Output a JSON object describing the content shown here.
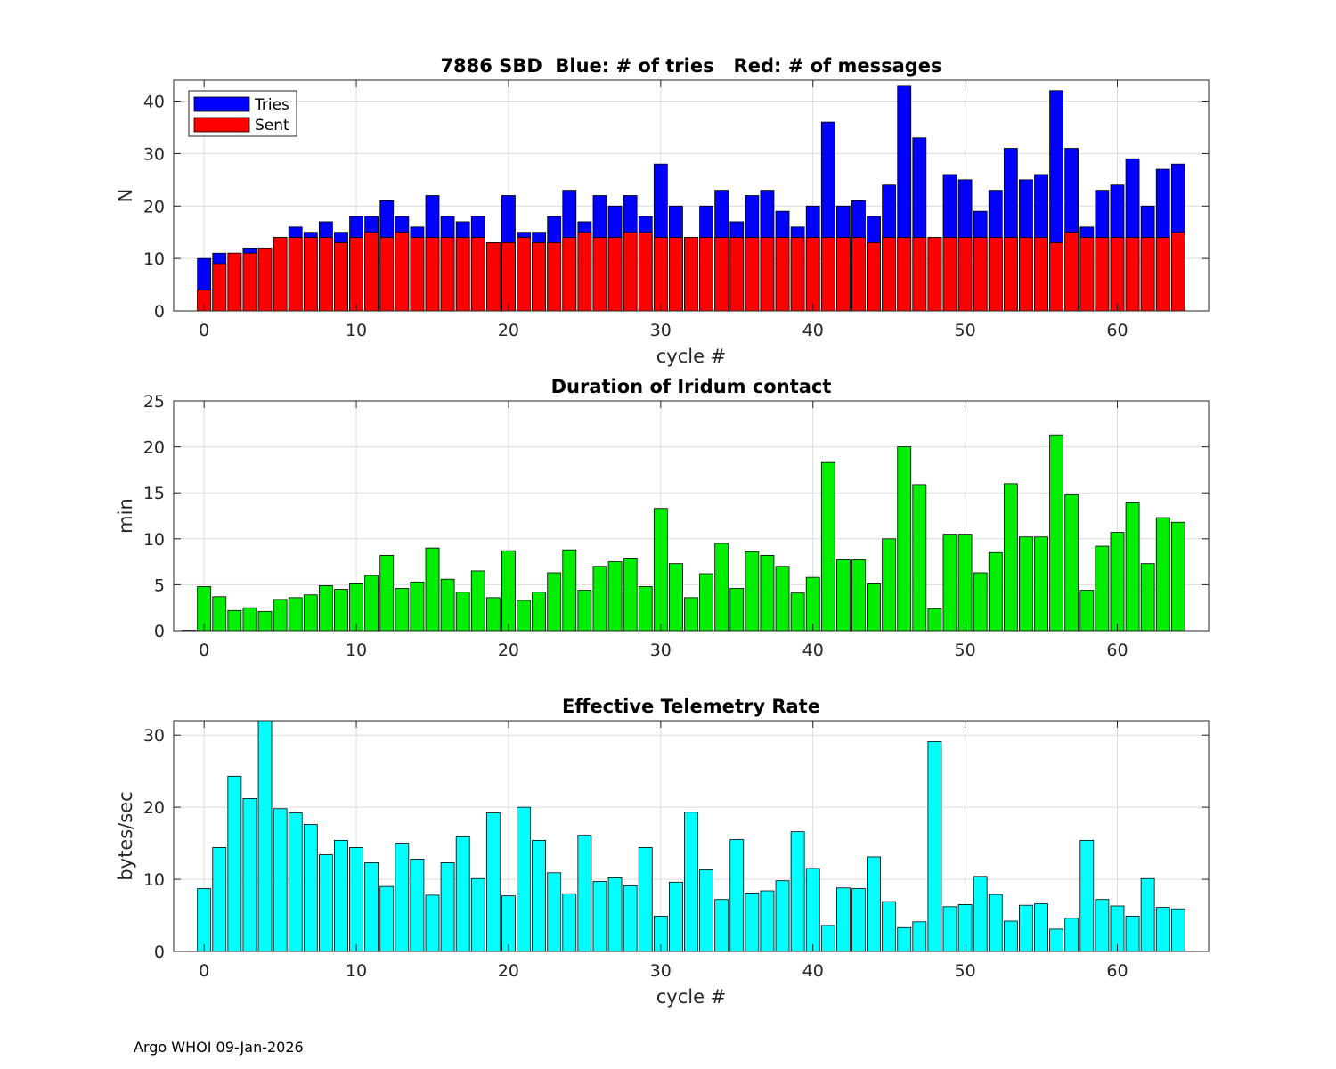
{
  "footer": "Argo WHOI 09-Jan-2026",
  "colors": {
    "tries": "#0000ff",
    "sent": "#ff0000",
    "duration": "#00ee00",
    "rate": "#00ffff",
    "grid": "#dcdcdc"
  },
  "chart_data": [
    {
      "type": "bar",
      "title": "7886 SBD  Blue: # of tries   Red: # of messages",
      "xlabel": "cycle #",
      "ylabel": "N",
      "xlim": [
        -2,
        66
      ],
      "ylim": [
        0,
        44
      ],
      "xticks": [
        0,
        10,
        20,
        30,
        40,
        50,
        60
      ],
      "yticks": [
        0,
        10,
        20,
        30,
        40
      ],
      "grid": true,
      "legend": {
        "position": "top-left",
        "entries": [
          "Tries",
          "Sent"
        ]
      },
      "x": [
        0,
        1,
        2,
        3,
        4,
        5,
        6,
        7,
        8,
        9,
        10,
        11,
        12,
        13,
        14,
        15,
        16,
        17,
        18,
        19,
        20,
        21,
        22,
        23,
        24,
        25,
        26,
        27,
        28,
        29,
        30,
        31,
        32,
        33,
        34,
        35,
        36,
        37,
        38,
        39,
        40,
        41,
        42,
        43,
        44,
        45,
        46,
        47,
        48,
        49,
        50,
        51,
        52,
        53,
        54,
        55,
        56,
        57,
        58,
        59,
        60,
        61,
        62,
        63,
        64
      ],
      "series": [
        {
          "name": "Tries",
          "overlay": true,
          "values": [
            10,
            11,
            11,
            12,
            12,
            14,
            16,
            15,
            17,
            15,
            18,
            18,
            21,
            18,
            16,
            22,
            18,
            17,
            18,
            13,
            22,
            15,
            15,
            18,
            23,
            17,
            22,
            20,
            22,
            18,
            28,
            20,
            14,
            20,
            23,
            17,
            22,
            23,
            19,
            16,
            20,
            36,
            20,
            21,
            18,
            24,
            43,
            33,
            14,
            26,
            25,
            19,
            23,
            31,
            25,
            26,
            42,
            31,
            16,
            23,
            24,
            29,
            20,
            27,
            28
          ]
        },
        {
          "name": "Sent",
          "overlay": true,
          "values": [
            4,
            9,
            11,
            11,
            12,
            14,
            14,
            14,
            14,
            13,
            14,
            15,
            14,
            15,
            14,
            14,
            14,
            14,
            14,
            13,
            13,
            14,
            13,
            13,
            14,
            15,
            14,
            14,
            15,
            15,
            14,
            14,
            14,
            14,
            14,
            14,
            14,
            14,
            14,
            14,
            14,
            14,
            14,
            14,
            13,
            14,
            14,
            14,
            14,
            14,
            14,
            14,
            14,
            14,
            14,
            14,
            13,
            15,
            14,
            14,
            14,
            14,
            14,
            14,
            15
          ]
        }
      ]
    },
    {
      "type": "bar",
      "title": "Duration of Iridum contact",
      "xlabel": "",
      "ylabel": "min",
      "xlim": [
        -2,
        66
      ],
      "ylim": [
        0,
        25
      ],
      "xticks": [
        0,
        10,
        20,
        30,
        40,
        50,
        60
      ],
      "yticks": [
        0,
        5,
        10,
        15,
        20,
        25
      ],
      "grid": true,
      "x": [
        -1,
        0,
        1,
        2,
        3,
        4,
        5,
        6,
        7,
        8,
        9,
        10,
        11,
        12,
        13,
        14,
        15,
        16,
        17,
        18,
        19,
        20,
        21,
        22,
        23,
        24,
        25,
        26,
        27,
        28,
        29,
        30,
        31,
        32,
        33,
        34,
        35,
        36,
        37,
        38,
        39,
        40,
        41,
        42,
        43,
        44,
        45,
        46,
        47,
        48,
        49,
        50,
        51,
        52,
        53,
        54,
        55,
        56,
        57,
        58,
        59,
        60,
        61,
        62,
        63,
        64
      ],
      "series": [
        {
          "name": "Duration",
          "values": [
            0.05,
            4.8,
            3.7,
            2.2,
            2.5,
            2.1,
            3.4,
            3.6,
            3.9,
            4.9,
            4.5,
            5.1,
            6.0,
            8.2,
            4.6,
            5.3,
            9.0,
            5.6,
            4.2,
            6.5,
            3.6,
            8.7,
            3.3,
            4.2,
            6.3,
            8.8,
            4.4,
            7.0,
            7.5,
            7.9,
            4.8,
            13.3,
            7.3,
            3.6,
            6.2,
            9.5,
            4.6,
            8.6,
            8.2,
            7.0,
            4.1,
            5.8,
            18.3,
            7.7,
            7.7,
            5.1,
            10.0,
            20.0,
            15.9,
            2.4,
            10.5,
            10.5,
            6.3,
            8.5,
            16.0,
            10.2,
            10.2,
            21.3,
            14.8,
            4.4,
            9.2,
            10.7,
            13.9,
            7.3,
            12.3,
            11.8
          ]
        }
      ]
    },
    {
      "type": "bar",
      "title": "Effective Telemetry Rate",
      "xlabel": "cycle #",
      "ylabel": "bytes/sec",
      "xlim": [
        -2,
        66
      ],
      "ylim": [
        0,
        32
      ],
      "xticks": [
        0,
        10,
        20,
        30,
        40,
        50,
        60
      ],
      "yticks": [
        0,
        10,
        20,
        30
      ],
      "grid": true,
      "x": [
        0,
        1,
        2,
        3,
        4,
        5,
        6,
        7,
        8,
        9,
        10,
        11,
        12,
        13,
        14,
        15,
        16,
        17,
        18,
        19,
        20,
        21,
        22,
        23,
        24,
        25,
        26,
        27,
        28,
        29,
        30,
        31,
        32,
        33,
        34,
        35,
        36,
        37,
        38,
        39,
        40,
        41,
        42,
        43,
        44,
        45,
        46,
        47,
        48,
        49,
        50,
        51,
        52,
        53,
        54,
        55,
        56,
        57,
        58,
        59,
        60,
        61,
        62,
        63,
        64
      ],
      "series": [
        {
          "name": "Rate",
          "values": [
            8.7,
            14.4,
            24.3,
            21.2,
            32,
            19.8,
            19.2,
            17.6,
            13.4,
            15.4,
            14.4,
            12.3,
            9.0,
            15.0,
            12.8,
            7.8,
            12.3,
            15.9,
            10.1,
            19.2,
            7.7,
            20.0,
            15.4,
            10.9,
            8.0,
            16.1,
            9.7,
            10.2,
            9.1,
            14.4,
            4.9,
            9.6,
            19.3,
            11.3,
            7.2,
            15.5,
            8.1,
            8.4,
            9.8,
            16.6,
            11.5,
            3.6,
            8.8,
            8.7,
            13.1,
            6.9,
            3.3,
            4.1,
            29.1,
            6.2,
            6.5,
            10.4,
            7.9,
            4.2,
            6.4,
            6.6,
            3.1,
            4.6,
            15.4,
            7.2,
            6.3,
            4.9,
            10.1,
            6.1,
            5.9
          ]
        }
      ]
    }
  ]
}
